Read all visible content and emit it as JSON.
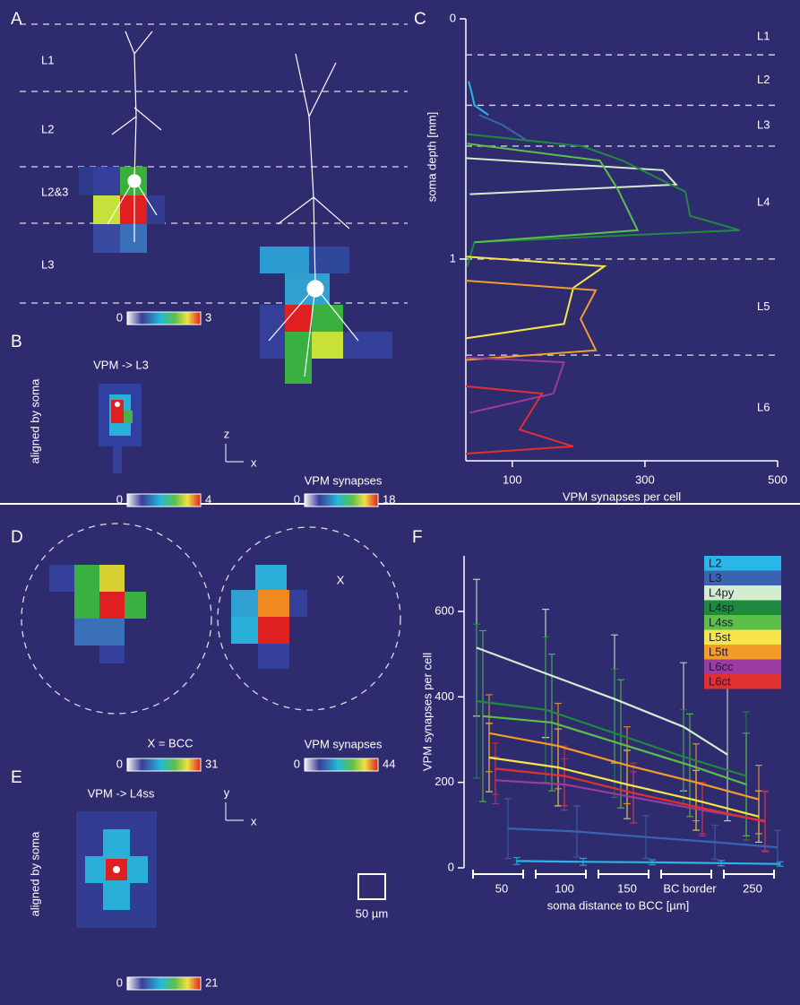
{
  "panels": {
    "a": {
      "label": "A",
      "layers": [
        "L1",
        "L2",
        "L2&3",
        "L3"
      ],
      "colorbar": {
        "min": 0,
        "max": 3
      }
    },
    "b": {
      "label": "B",
      "title": "VPM -> L3",
      "side_label": "aligned by soma",
      "axes": [
        "z",
        "x"
      ],
      "colorbar": {
        "min": 0,
        "max": 4
      },
      "colorbar_title": "VPM synapses",
      "colorbar2": {
        "min": 0,
        "max": 18
      }
    },
    "d": {
      "label": "D",
      "marker": "X",
      "note": "X = BCC",
      "colorbar": {
        "min": 0,
        "max": 31
      },
      "colorbar_title": "VPM synapses",
      "colorbar2": {
        "min": 0,
        "max": 44
      }
    },
    "e": {
      "label": "E",
      "title": "VPM -> L4ss",
      "axes": [
        "y",
        "x"
      ],
      "side_label": "aligned by soma",
      "colorbar": {
        "min": 0,
        "max": 21
      },
      "scale_bar": "50 µm"
    }
  },
  "chart_data": [
    {
      "type": "line",
      "label": "C",
      "xlabel": "VPM synapses per cell",
      "ylabel": "soma depth [mm]",
      "xlim": [
        30,
        500
      ],
      "xticks": [
        100,
        300,
        500
      ],
      "ylim": [
        0,
        1.84
      ],
      "yticks": [
        0,
        1
      ],
      "y_inverted": true,
      "layer_boundaries": [
        0.15,
        0.36,
        0.53,
        1.0,
        1.4
      ],
      "layers": [
        "L1",
        "L2",
        "L3",
        "L4",
        "L5",
        "L6"
      ],
      "series": [
        {
          "color": "#29b6e8",
          "values": [
            34,
            39,
            43,
            64
          ],
          "depths": [
            0.26,
            0.31,
            0.36,
            0.4
          ]
        },
        {
          "color": "#3a63b0",
          "values": [
            50,
            84,
            124
          ],
          "depths": [
            0.4,
            0.44,
            0.51
          ]
        },
        {
          "color": "#d4ecd0",
          "values": [
            30,
            327,
            347,
            36
          ],
          "depths": [
            0.58,
            0.63,
            0.69,
            0.73
          ]
        },
        {
          "color": "#1f8a3e",
          "values": [
            32,
            205,
            266,
            361,
            368,
            443,
            43,
            32
          ],
          "depths": [
            0.48,
            0.53,
            0.59,
            0.72,
            0.82,
            0.88,
            0.93,
            1.03
          ]
        },
        {
          "color": "#5cbf4a",
          "values": [
            32,
            232,
            259,
            289,
            43
          ],
          "depths": [
            0.52,
            0.59,
            0.71,
            0.88,
            0.93
          ]
        },
        {
          "color": "#f5e44a",
          "values": [
            30,
            239,
            192,
            178,
            30
          ],
          "depths": [
            0.99,
            1.03,
            1.12,
            1.27,
            1.33
          ]
        },
        {
          "color": "#f39c2a",
          "values": [
            30,
            226,
            203,
            226,
            30
          ],
          "depths": [
            1.09,
            1.13,
            1.25,
            1.38,
            1.42
          ]
        },
        {
          "color": "#9b3aa0",
          "values": [
            30,
            178,
            162,
            36
          ],
          "depths": [
            1.41,
            1.43,
            1.56,
            1.64
          ]
        },
        {
          "color": "#e03030",
          "values": [
            30,
            145,
            111,
            192,
            30
          ],
          "depths": [
            1.53,
            1.56,
            1.71,
            1.78,
            1.81
          ]
        }
      ]
    },
    {
      "type": "line",
      "label": "F",
      "xlabel": "soma distance to BCC [µm]",
      "ylabel": "VPM synapses per cell",
      "xlim": [
        20,
        275
      ],
      "xticks": [
        50,
        100,
        150,
        {
          "value": 200,
          "label": "BC border"
        },
        250
      ],
      "ylim": [
        0,
        730
      ],
      "yticks": [
        0,
        200,
        400,
        600
      ],
      "legend": "upper right",
      "series": [
        {
          "name": "L2",
          "color": "#29b6e8",
          "x": [
            62,
            115,
            170,
            225,
            272
          ],
          "values": [
            16,
            14,
            13,
            11,
            9
          ],
          "errors": [
            8,
            8,
            6,
            6,
            5
          ]
        },
        {
          "name": "L3",
          "color": "#3a63b0",
          "x": [
            55,
            110,
            165,
            220,
            270
          ],
          "values": [
            92,
            85,
            72,
            60,
            48
          ],
          "errors": [
            70,
            60,
            50,
            40,
            40
          ]
        },
        {
          "name": "L4py",
          "color": "#d4ecd0",
          "x": [
            30,
            85,
            140,
            195,
            230
          ],
          "values": [
            515,
            455,
            395,
            330,
            265
          ],
          "errors": [
            160,
            150,
            150,
            150,
            155
          ]
        },
        {
          "name": "L4sp",
          "color": "#1f8a3e",
          "x": [
            30,
            85,
            140,
            195,
            245
          ],
          "values": [
            390,
            370,
            315,
            260,
            215
          ],
          "errors": [
            180,
            170,
            150,
            110,
            150
          ]
        },
        {
          "name": "L4ss",
          "color": "#5cbf4a",
          "x": [
            35,
            90,
            145,
            200,
            245
          ],
          "values": [
            355,
            340,
            290,
            240,
            195
          ],
          "errors": [
            200,
            160,
            150,
            120,
            120
          ]
        },
        {
          "name": "L5st",
          "color": "#f5e44a",
          "x": [
            40,
            95,
            150,
            205,
            255
          ],
          "values": [
            258,
            235,
            195,
            158,
            120
          ],
          "errors": [
            80,
            90,
            80,
            70,
            60
          ]
        },
        {
          "name": "L5tt",
          "color": "#f39c2a",
          "x": [
            40,
            95,
            150,
            205,
            255
          ],
          "values": [
            315,
            285,
            240,
            200,
            160
          ],
          "errors": [
            90,
            100,
            90,
            90,
            80
          ]
        },
        {
          "name": "L6cc",
          "color": "#9b3aa0",
          "x": [
            45,
            100,
            155,
            210,
            260
          ],
          "values": [
            205,
            195,
            165,
            135,
            110
          ],
          "errors": [
            55,
            60,
            60,
            60,
            70
          ]
        },
        {
          "name": "L6ct",
          "color": "#e03030",
          "x": [
            45,
            100,
            155,
            210,
            260
          ],
          "values": [
            232,
            215,
            175,
            140,
            108
          ],
          "errors": [
            60,
            70,
            70,
            60,
            70
          ]
        }
      ]
    }
  ]
}
